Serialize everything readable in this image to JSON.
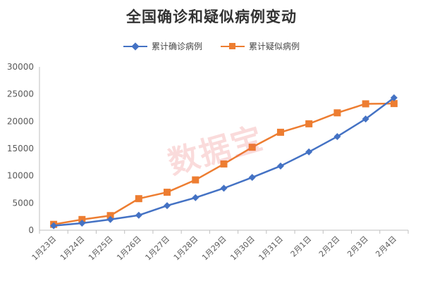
{
  "title": "全国确诊和疑似病例变动",
  "watermark": "数据宝",
  "chart_data": {
    "type": "line",
    "title": "全国确诊和疑似病例变动",
    "categories": [
      "1月23日",
      "1月24日",
      "1月25日",
      "1月26日",
      "1月27日",
      "1月28日",
      "1月29日",
      "1月30日",
      "1月31日",
      "2月1日",
      "2月2日",
      "2月3日",
      "2月4日"
    ],
    "series": [
      {
        "name": "累计确诊病例",
        "color": "#4472c4",
        "marker": "diamond",
        "values": [
          830,
          1287,
          1975,
          2744,
          4515,
          5974,
          7711,
          9692,
          11791,
          14380,
          17205,
          20438,
          24324
        ]
      },
      {
        "name": "累计疑似病例",
        "color": "#ed7d31",
        "marker": "square",
        "values": [
          1072,
          1965,
          2684,
          5794,
          6973,
          9239,
          12167,
          15238,
          17988,
          19544,
          21558,
          23214,
          23260
        ]
      }
    ],
    "y_ticks": [
      "0",
      "5000",
      "10000",
      "15000",
      "20000",
      "25000",
      "30000"
    ],
    "ylim": [
      0,
      30000
    ],
    "grid": false,
    "legend": "top"
  }
}
